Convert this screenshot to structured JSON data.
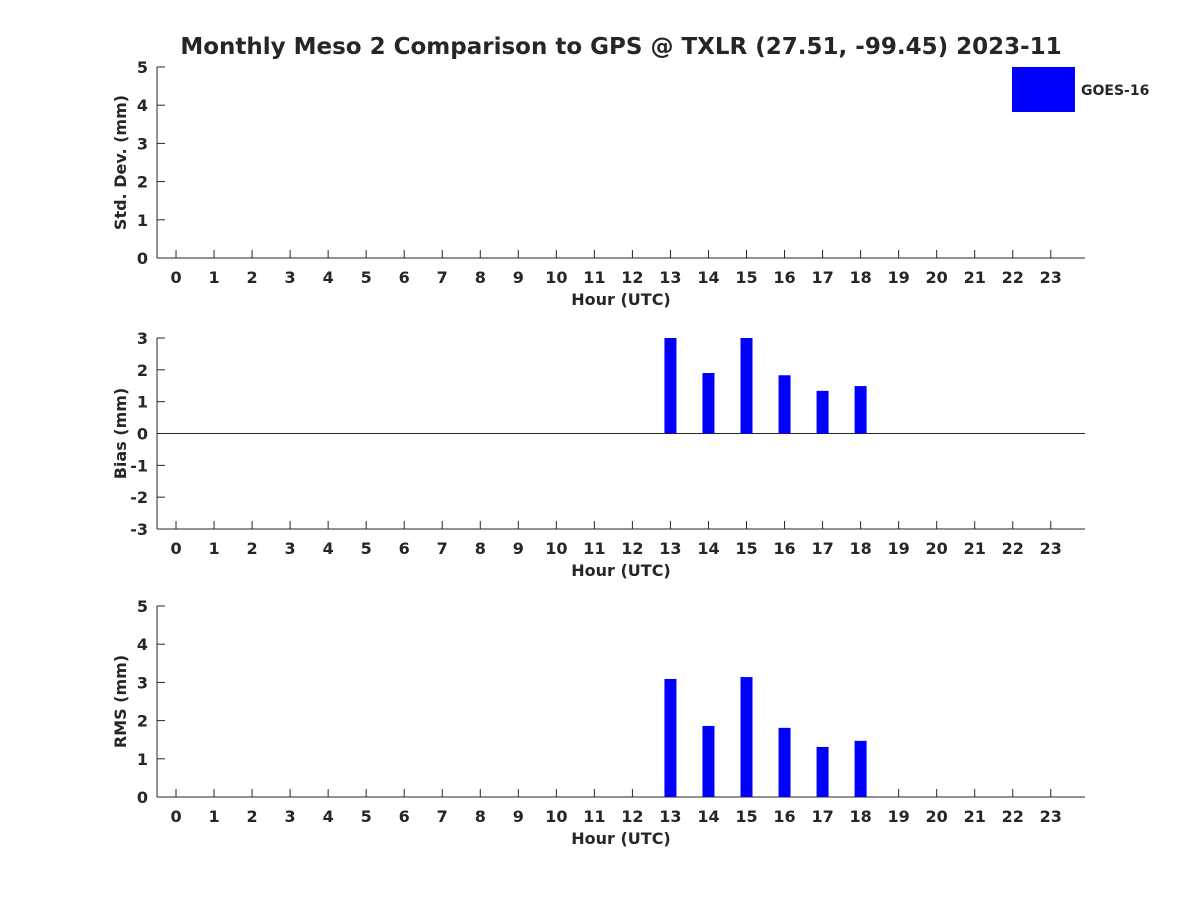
{
  "chart_data": [
    {
      "type": "bar",
      "title": "Monthly Meso 2 Comparison to GPS @ TXLR (27.51, -99.45) 2023-11",
      "xlabel": "Hour (UTC)",
      "ylabel": "Std. Dev. (mm)",
      "xlim": [
        -0.5,
        23.9
      ],
      "ylim": [
        0,
        5
      ],
      "yticks": [
        0,
        1,
        2,
        3,
        4,
        5
      ],
      "categories": [
        0,
        1,
        2,
        3,
        4,
        5,
        6,
        7,
        8,
        9,
        10,
        11,
        12,
        13,
        14,
        15,
        16,
        17,
        18,
        19,
        20,
        21,
        22,
        23
      ],
      "series": [
        {
          "name": "GOES-16",
          "color": "#0000ff",
          "values": [
            null,
            null,
            null,
            null,
            null,
            null,
            null,
            null,
            null,
            null,
            null,
            null,
            null,
            null,
            null,
            null,
            null,
            null,
            null,
            null,
            null,
            null,
            null,
            null
          ]
        }
      ],
      "legend": {
        "entries": [
          "GOES-16"
        ],
        "placement": "top-right outside"
      }
    },
    {
      "type": "bar",
      "xlabel": "Hour (UTC)",
      "ylabel": "Bias (mm)",
      "xlim": [
        -0.5,
        23.9
      ],
      "ylim": [
        -3,
        3
      ],
      "yticks": [
        -3,
        -2,
        -1,
        0,
        1,
        2,
        3
      ],
      "zero_line": true,
      "categories": [
        0,
        1,
        2,
        3,
        4,
        5,
        6,
        7,
        8,
        9,
        10,
        11,
        12,
        13,
        14,
        15,
        16,
        17,
        18,
        19,
        20,
        21,
        22,
        23
      ],
      "series": [
        {
          "name": "GOES-16",
          "color": "#0000ff",
          "values": [
            null,
            null,
            null,
            null,
            null,
            null,
            null,
            null,
            null,
            null,
            null,
            null,
            null,
            3.08,
            1.9,
            3.13,
            1.83,
            1.34,
            1.49,
            null,
            null,
            null,
            null,
            null
          ]
        }
      ]
    },
    {
      "type": "bar",
      "xlabel": "Hour (UTC)",
      "ylabel": "RMS (mm)",
      "xlim": [
        -0.5,
        23.9
      ],
      "ylim": [
        0,
        5
      ],
      "yticks": [
        0,
        1,
        2,
        3,
        4,
        5
      ],
      "categories": [
        0,
        1,
        2,
        3,
        4,
        5,
        6,
        7,
        8,
        9,
        10,
        11,
        12,
        13,
        14,
        15,
        16,
        17,
        18,
        19,
        20,
        21,
        22,
        23
      ],
      "series": [
        {
          "name": "GOES-16",
          "color": "#0000ff",
          "values": [
            null,
            null,
            null,
            null,
            null,
            null,
            null,
            null,
            null,
            null,
            null,
            null,
            null,
            3.09,
            1.86,
            3.14,
            1.81,
            1.31,
            1.47,
            null,
            null,
            null,
            null,
            null
          ]
        }
      ]
    }
  ]
}
